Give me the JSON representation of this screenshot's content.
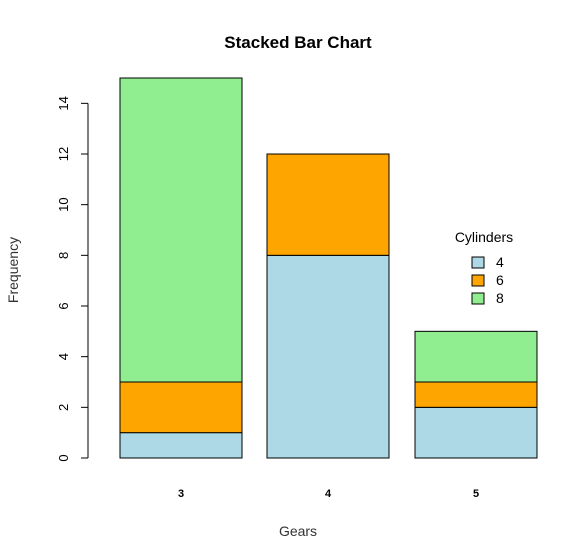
{
  "chart_data": {
    "type": "bar",
    "stacked": true,
    "title": "Stacked Bar Chart",
    "xlabel": "Gears",
    "ylabel": "Frequency",
    "categories": [
      "3",
      "4",
      "5"
    ],
    "series": [
      {
        "name": "4",
        "values": [
          1,
          8,
          2
        ],
        "color": "#add8e6"
      },
      {
        "name": "6",
        "values": [
          2,
          4,
          1
        ],
        "color": "#ffa500"
      },
      {
        "name": "8",
        "values": [
          12,
          0,
          2
        ],
        "color": "#90ee90"
      }
    ],
    "ylim": [
      0,
      15
    ],
    "yticks": [
      "0",
      "2",
      "4",
      "6",
      "8",
      "10",
      "12",
      "14"
    ],
    "legend": {
      "title": "Cylinders",
      "placement": "right"
    },
    "grid": false
  }
}
